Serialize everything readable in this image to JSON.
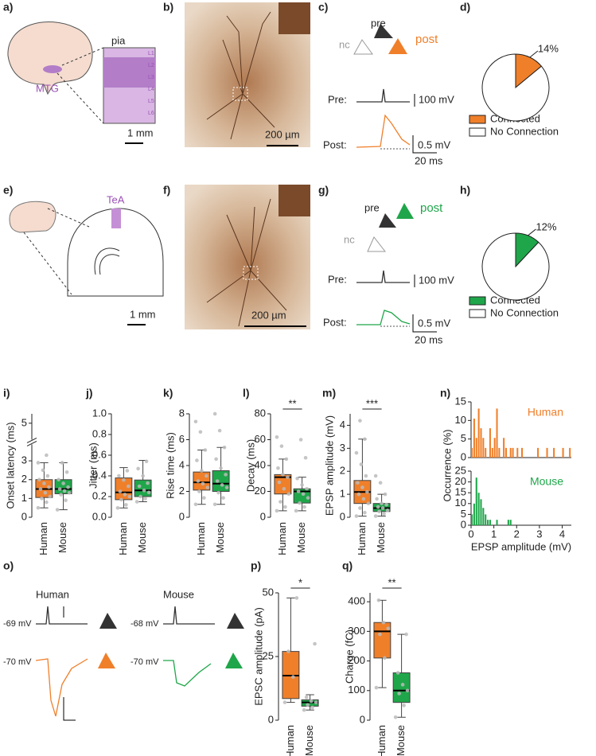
{
  "panel_labels": [
    "a)",
    "b)",
    "c)",
    "d)",
    "e)",
    "f)",
    "g)",
    "h)",
    "i)",
    "j)",
    "k)",
    "l)",
    "m)",
    "n)",
    "o)",
    "p)",
    "q)"
  ],
  "diagrams": {
    "a": {
      "pia": "pia",
      "region": "MTG",
      "layers": [
        "L1",
        "L2",
        "L3",
        "L4",
        "L5",
        "L6"
      ],
      "scale": "1 mm"
    },
    "b": {
      "scale": "200 µm"
    },
    "c": {
      "pre": "pre",
      "nc": "nc",
      "post": "post",
      "pre_trace": "Pre:",
      "post_trace": "Post:",
      "pre_scale": "100 mV",
      "post_scale": "0.5 mV",
      "time_scale": "20 ms"
    },
    "e": {
      "region": "TeA",
      "scale": "1 mm"
    },
    "f": {
      "scale": "200 µm"
    },
    "g": {
      "pre": "pre",
      "nc": "nc",
      "post": "post",
      "pre_trace": "Pre:",
      "post_trace": "Post:",
      "pre_scale": "100 mV",
      "post_scale": "0.5 mV",
      "time_scale": "20 ms"
    },
    "o": {
      "human": "Human",
      "mouse": "Mouse",
      "human_pre_vm": "-69 mV",
      "human_post_vm": "-70 mV",
      "mouse_pre_vm": "-68 mV",
      "mouse_post_vm": "-70 mV"
    }
  },
  "chart_data": [
    {
      "type": "pie",
      "categories": [
        "Connected",
        "No Connection"
      ],
      "values": [
        14,
        86
      ],
      "value_labels": [
        "14%",
        null
      ],
      "colors": [
        "#f07f2a",
        "#ffffff"
      ]
    },
    {
      "type": "pie",
      "categories": [
        "Connected",
        "No Connection"
      ],
      "values": [
        12,
        88
      ],
      "value_labels": [
        "12%",
        null
      ],
      "colors": [
        "#1fa64a",
        "#ffffff"
      ]
    },
    {
      "type": "box",
      "ylabel": "Onset latency (ms)",
      "categories": [
        "Human",
        "Mouse"
      ],
      "colors": [
        "#f07f2a",
        "#1fa64a"
      ],
      "ylim": [
        0,
        5.5
      ],
      "yticks": [
        0,
        1,
        2,
        3,
        5
      ],
      "axis_break": 4,
      "boxes": [
        {
          "min": 0.5,
          "q1": 1.05,
          "median": 1.5,
          "q3": 2.0,
          "max": 2.9,
          "points": [
            0.5,
            0.8,
            1.0,
            1.1,
            1.3,
            1.5,
            1.6,
            1.8,
            2.0,
            2.2,
            2.5,
            2.9,
            3.3
          ]
        },
        {
          "min": 0.4,
          "q1": 1.25,
          "median": 1.5,
          "q3": 2.0,
          "max": 2.9,
          "points": [
            0.4,
            0.9,
            1.2,
            1.3,
            1.4,
            1.5,
            1.6,
            1.8,
            2.0,
            2.4,
            2.9
          ]
        }
      ]
    },
    {
      "type": "box",
      "ylabel": "Jitter (ms)",
      "categories": [
        "Human",
        "Mouse"
      ],
      "colors": [
        "#f07f2a",
        "#1fa64a"
      ],
      "ylim": [
        0,
        1
      ],
      "yticks": [
        {
          "value": 0,
          "label": "0.0"
        },
        0.2,
        0.4,
        0.6,
        0.8,
        {
          "value": 1,
          "label": "1.0"
        }
      ],
      "boxes": [
        {
          "min": 0.09,
          "q1": 0.17,
          "median": 0.24,
          "q3": 0.38,
          "max": 0.48,
          "points": [
            0.09,
            0.12,
            0.17,
            0.2,
            0.22,
            0.25,
            0.3,
            0.36,
            0.4,
            0.45
          ]
        },
        {
          "min": 0.15,
          "q1": 0.2,
          "median": 0.26,
          "q3": 0.36,
          "max": 0.55,
          "points": [
            0.15,
            0.18,
            0.2,
            0.24,
            0.26,
            0.3,
            0.33,
            0.4,
            0.47,
            0.54
          ]
        }
      ]
    },
    {
      "type": "box",
      "ylabel": "Rise time (ms)",
      "categories": [
        "Human",
        "Mouse"
      ],
      "colors": [
        "#f07f2a",
        "#1fa64a"
      ],
      "ylim": [
        0,
        8
      ],
      "yticks": [
        0,
        2,
        4,
        6,
        8
      ],
      "boxes": [
        {
          "min": 1,
          "q1": 2.1,
          "median": 2.7,
          "q3": 3.5,
          "max": 5.2,
          "points": [
            1,
            1.5,
            2,
            2.3,
            2.6,
            2.8,
            3.2,
            3.6,
            4.4,
            5.2,
            6.6,
            7.4
          ]
        },
        {
          "min": 1,
          "q1": 2.0,
          "median": 2.6,
          "q3": 3.6,
          "max": 5.4,
          "points": [
            1,
            1.5,
            1.9,
            2.3,
            2.5,
            2.8,
            3.3,
            3.8,
            4.5,
            5.4,
            6.7,
            8
          ]
        }
      ]
    },
    {
      "type": "box",
      "ylabel": "Decay (ms)",
      "categories": [
        "Human",
        "Mouse"
      ],
      "colors": [
        "#f07f2a",
        "#1fa64a"
      ],
      "ylim": [
        0,
        80
      ],
      "yticks": [
        0,
        20,
        40,
        60,
        80
      ],
      "significance": "**",
      "boxes": [
        {
          "min": 5,
          "q1": 18,
          "median": 31,
          "q3": 33,
          "max": 45,
          "points": [
            5,
            8,
            12,
            18,
            22,
            27,
            31,
            33,
            38,
            45,
            55,
            62
          ]
        },
        {
          "min": 5,
          "q1": 11,
          "median": 20,
          "q3": 22,
          "max": 31,
          "points": [
            5,
            8,
            11,
            15,
            18,
            20,
            22,
            25,
            30,
            46,
            60
          ]
        }
      ]
    },
    {
      "type": "box",
      "ylabel": "EPSP amplitude (mV)",
      "categories": [
        "Human",
        "Mouse"
      ],
      "colors": [
        "#f07f2a",
        "#1fa64a"
      ],
      "ylim": [
        0,
        4.5
      ],
      "yticks": [
        0,
        1,
        2,
        3,
        4
      ],
      "significance": "***",
      "boxes": [
        {
          "min": 0.05,
          "q1": 0.6,
          "median": 1.1,
          "q3": 1.6,
          "max": 3.4,
          "points": [
            0.05,
            0.2,
            0.4,
            0.6,
            0.8,
            1.0,
            1.1,
            1.3,
            1.5,
            1.8,
            2.3,
            2.8,
            3.4,
            4.2
          ]
        },
        {
          "min": 0.05,
          "q1": 0.25,
          "median": 0.4,
          "q3": 0.6,
          "max": 1.0,
          "points": [
            0.05,
            0.15,
            0.25,
            0.3,
            0.4,
            0.45,
            0.55,
            0.6,
            0.8,
            1.0,
            1.5,
            1.8
          ]
        }
      ]
    },
    {
      "type": "histogram",
      "name": "Human",
      "color": "#f07f2a",
      "ylabel": "Occurrence (%)",
      "xlim": [
        0,
        4.4
      ],
      "ylim": [
        0,
        15
      ],
      "yticks": [
        0,
        5,
        10,
        15
      ],
      "bins": [
        0,
        0.1,
        0.2,
        0.3,
        0.4,
        0.5,
        0.6,
        0.7,
        0.8,
        0.9,
        1.0,
        1.1,
        1.2,
        1.3,
        1.4,
        1.5,
        1.6,
        1.7,
        1.8,
        1.9,
        2.0,
        2.1,
        2.2,
        2.3,
        2.4,
        2.5,
        2.6,
        2.7,
        2.8,
        2.9,
        3.0,
        3.1,
        3.2,
        3.3,
        3.4,
        3.5,
        3.6,
        3.7,
        3.8,
        3.9,
        4.0,
        4.1,
        4.2,
        4.3,
        4.4
      ],
      "values": [
        2.6,
        10.5,
        5.3,
        13.2,
        7.9,
        5.3,
        2.6,
        0,
        7.9,
        2.6,
        5.3,
        13.2,
        2.6,
        0,
        5.3,
        2.6,
        0,
        2.6,
        2.6,
        0,
        2.6,
        0,
        2.6,
        0,
        0,
        0,
        0,
        0,
        0,
        2.6,
        0,
        0,
        0,
        2.6,
        0,
        0,
        2.6,
        0,
        0,
        0,
        2.6,
        0,
        0,
        2.6
      ]
    },
    {
      "type": "histogram",
      "name": "Mouse",
      "color": "#1fa64a",
      "xlabel": "EPSP amplitude (mV)",
      "xlim": [
        0,
        4.4
      ],
      "xticks": [
        0,
        1,
        2,
        3,
        4
      ],
      "ylim": [
        0,
        25
      ],
      "yticks": [
        0,
        5,
        10,
        15,
        20,
        25
      ],
      "bins": [
        0,
        0.1,
        0.2,
        0.3,
        0.4,
        0.5,
        0.6,
        0.7,
        0.8,
        0.9,
        1.0,
        1.1,
        1.2,
        1.3,
        1.4,
        1.5,
        1.6,
        1.7,
        1.8
      ],
      "values": [
        5,
        10,
        22,
        15,
        12,
        8,
        5,
        2.5,
        2.5,
        0,
        0,
        2.5,
        0,
        0,
        0,
        0,
        2.5,
        2.5
      ]
    },
    {
      "type": "box",
      "ylabel": "EPSC amplitude (pA)",
      "categories": [
        "Human",
        "Mouse"
      ],
      "colors": [
        "#f07f2a",
        "#1fa64a"
      ],
      "ylim": [
        0,
        50
      ],
      "yticks": [
        0,
        25,
        50
      ],
      "significance": "*",
      "boxes": [
        {
          "min": 7,
          "q1": 8.5,
          "median": 17.5,
          "q3": 27,
          "max": 48,
          "points": [
            7,
            17,
            27,
            48
          ]
        },
        {
          "min": 4,
          "q1": 5.5,
          "median": 7,
          "q3": 8,
          "max": 10,
          "points": [
            4,
            5,
            6,
            7,
            7.5,
            9,
            30
          ]
        }
      ]
    },
    {
      "type": "box",
      "ylabel": "Charge (fC)",
      "categories": [
        "Human",
        "Mouse"
      ],
      "colors": [
        "#f07f2a",
        "#1fa64a"
      ],
      "ylim": [
        0,
        430
      ],
      "yticks": [
        0,
        100,
        200,
        300,
        400
      ],
      "significance": "**",
      "boxes": [
        {
          "min": 110,
          "q1": 210,
          "median": 300,
          "q3": 330,
          "max": 405,
          "points": [
            110,
            210,
            290,
            310,
            330,
            405
          ]
        },
        {
          "min": 10,
          "q1": 60,
          "median": 100,
          "q3": 160,
          "max": 290,
          "points": [
            10,
            50,
            90,
            100,
            120,
            160,
            290
          ]
        }
      ]
    }
  ]
}
